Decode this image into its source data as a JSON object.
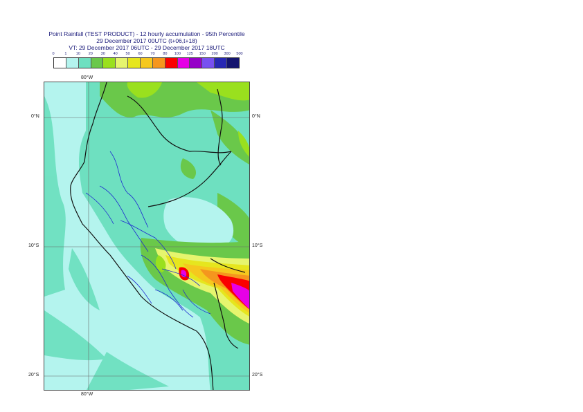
{
  "title": {
    "line1": "Point Rainfall (TEST PRODUCT) - 12 hourly accumulation - 95th Percentile",
    "line2": "29 December 2017 00UTC (t+06,t+18)",
    "line3": "VT: 29 December 2017 06UTC - 29 December 2017 18UTC"
  },
  "legend": {
    "ticks": [
      "0",
      "1",
      "10",
      "20",
      "30",
      "40",
      "50",
      "60",
      "70",
      "80",
      "100",
      "125",
      "150",
      "200",
      "300",
      "500"
    ],
    "colors": [
      "#ffffff",
      "#b4f4ee",
      "#6ee0c0",
      "#6ac84a",
      "#9ae01e",
      "#e6f56e",
      "#e6e61e",
      "#f5c81e",
      "#f5961e",
      "#fa0000",
      "#e600e6",
      "#9600c8",
      "#7850f0",
      "#2828b4",
      "#14146e"
    ]
  },
  "map": {
    "lon_label_top": "80°W",
    "lon_label_bottom": "80°W",
    "lat_labels": [
      "0°N",
      "10°S",
      "20°S"
    ]
  }
}
